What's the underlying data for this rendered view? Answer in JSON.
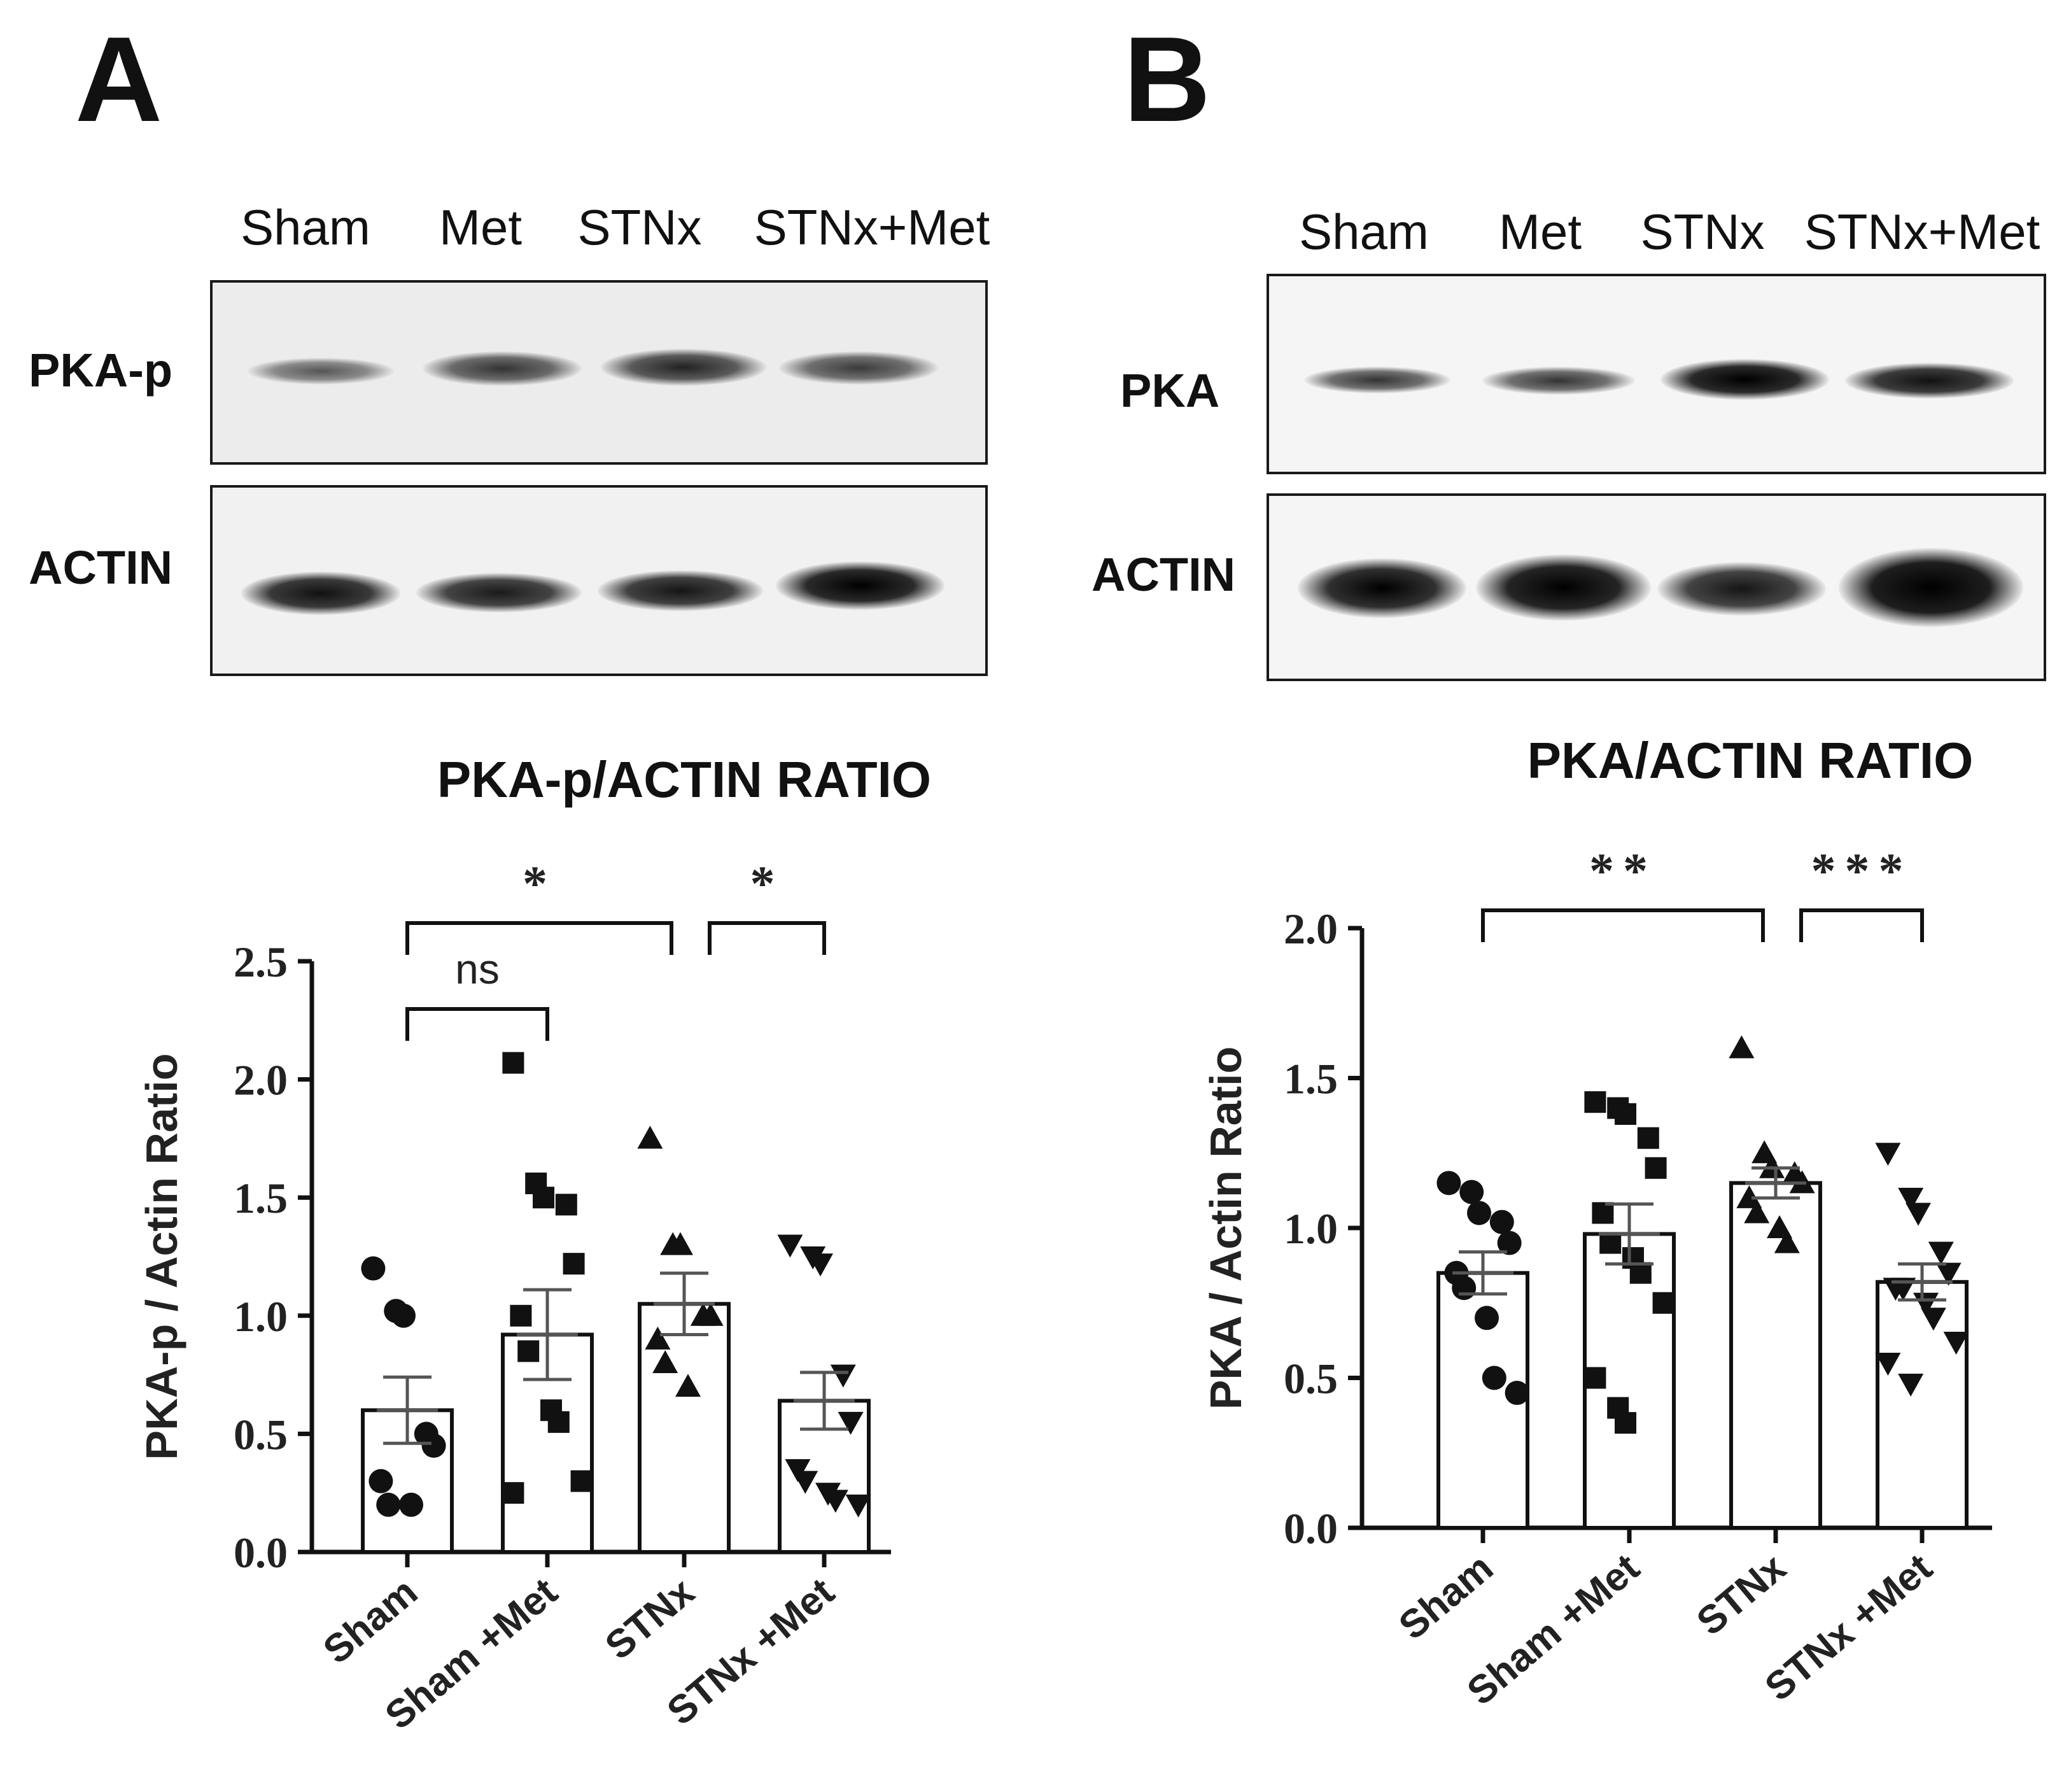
{
  "panel_a": {
    "letter": "A",
    "lanes": [
      "Sham",
      "Met",
      "STNx",
      "STNx+Met"
    ],
    "rows": [
      "PKA-p",
      "ACTIN"
    ]
  },
  "panel_b": {
    "letter": "B",
    "lanes": [
      "Sham",
      "Met",
      "STNx",
      "STNx+Met"
    ],
    "rows": [
      "PKA",
      "ACTIN"
    ]
  },
  "chart_data": [
    {
      "type": "bar",
      "title": "PKA-p/ACTIN RATIO",
      "xlabel": "",
      "ylabel": "PKA-p / Actin Ratio",
      "ylim": [
        0,
        2.5
      ],
      "yticks": [
        "0.0",
        "0.5",
        "1.0",
        "1.5",
        "2.0",
        "2.5"
      ],
      "categories": [
        "Sham",
        "Sham +Met",
        "STNx",
        "STNx +Met"
      ],
      "values": [
        0.6,
        0.92,
        1.05,
        0.64
      ],
      "sem": [
        0.14,
        0.19,
        0.13,
        0.12
      ],
      "markers": [
        "circle",
        "square",
        "triangle",
        "triangle-down"
      ],
      "points": [
        [
          1.2,
          1.02,
          1.0,
          0.5,
          0.45,
          0.3,
          0.2,
          0.2
        ],
        [
          2.07,
          1.56,
          1.5,
          1.47,
          1.22,
          1.0,
          0.85,
          0.6,
          0.55,
          0.3,
          0.25
        ],
        [
          1.75,
          1.3,
          1.3,
          1.0,
          1.0,
          0.9,
          0.8,
          0.7
        ],
        [
          1.3,
          1.25,
          1.22,
          0.75,
          0.55,
          0.35,
          0.3,
          0.25,
          0.22,
          0.2
        ]
      ],
      "significance": [
        {
          "from": 0,
          "to": 1,
          "label": "ns"
        },
        {
          "from": 0,
          "to": 2,
          "label": "*"
        },
        {
          "from": 2,
          "to": 3,
          "label": "*"
        }
      ]
    },
    {
      "type": "bar",
      "title": "PKA/ACTIN RATIO",
      "xlabel": "",
      "ylabel": "PKA / Actin Ratio",
      "ylim": [
        0,
        2.0
      ],
      "yticks": [
        "0.0",
        "0.5",
        "1.0",
        "1.5",
        "2.0"
      ],
      "categories": [
        "Sham",
        "Sham +Met",
        "STNx",
        "STNx +Met"
      ],
      "values": [
        0.85,
        0.98,
        1.15,
        0.82
      ],
      "sem": [
        0.07,
        0.1,
        0.05,
        0.06
      ],
      "markers": [
        "circle",
        "square",
        "triangle",
        "triangle-down"
      ],
      "points": [
        [
          1.15,
          1.12,
          1.05,
          1.02,
          0.95,
          0.85,
          0.8,
          0.7,
          0.5,
          0.45
        ],
        [
          1.42,
          1.4,
          1.38,
          1.3,
          1.2,
          1.05,
          0.95,
          0.9,
          0.85,
          0.75,
          0.5,
          0.4,
          0.35
        ],
        [
          1.6,
          1.25,
          1.2,
          1.18,
          1.15,
          1.1,
          1.05,
          1.0,
          0.95
        ],
        [
          1.25,
          1.1,
          1.05,
          0.92,
          0.85,
          0.8,
          0.8,
          0.75,
          0.7,
          0.62,
          0.55,
          0.48
        ]
      ],
      "significance": [
        {
          "from": 0,
          "to": 2,
          "label": "**"
        },
        {
          "from": 2,
          "to": 3,
          "label": "***"
        }
      ]
    }
  ]
}
